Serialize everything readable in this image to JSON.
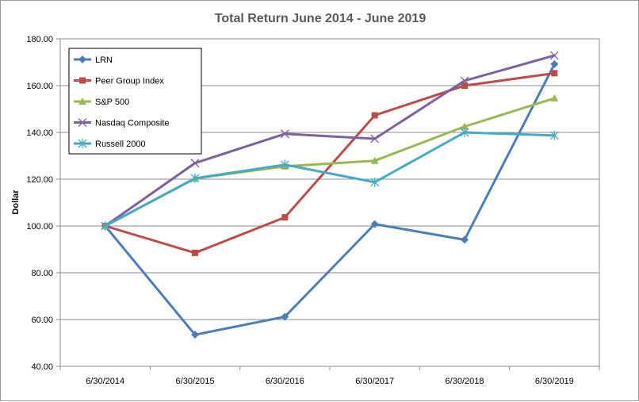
{
  "chart_data": {
    "type": "line",
    "title": "Total Return June 2014 - June 2019",
    "xlabel": "",
    "ylabel": "Dollar",
    "x": [
      "6/30/2014",
      "6/30/2015",
      "6/30/2016",
      "6/30/2017",
      "6/30/2018",
      "6/30/2019"
    ],
    "ylim": [
      40,
      180
    ],
    "yticks": [
      "40.00",
      "60.00",
      "80.00",
      "100.00",
      "120.00",
      "140.00",
      "160.00",
      "180.00"
    ],
    "grid": true,
    "legend_position": "top-left",
    "series": [
      {
        "name": "LRN",
        "color": "#4a7ebb",
        "marker": "diamond",
        "values": [
          100,
          53.5,
          61.2,
          100.8,
          94.1,
          169.2
        ]
      },
      {
        "name": "Peer Group Index",
        "color": "#be4b48",
        "marker": "square",
        "values": [
          100,
          88.5,
          103.7,
          147.3,
          160.0,
          165.3
        ]
      },
      {
        "name": "S&P 500",
        "color": "#98b954",
        "marker": "triangle",
        "values": [
          100,
          120.3,
          125.5,
          127.9,
          142.5,
          154.6
        ]
      },
      {
        "name": "Nasdaq Composite",
        "color": "#7d60a0",
        "marker": "x",
        "values": [
          100,
          126.9,
          139.4,
          137.3,
          162.1,
          172.9
        ]
      },
      {
        "name": "Russell 2000",
        "color": "#46aac5",
        "marker": "star",
        "values": [
          100,
          120.4,
          126.2,
          118.7,
          140.0,
          138.7
        ]
      }
    ]
  }
}
